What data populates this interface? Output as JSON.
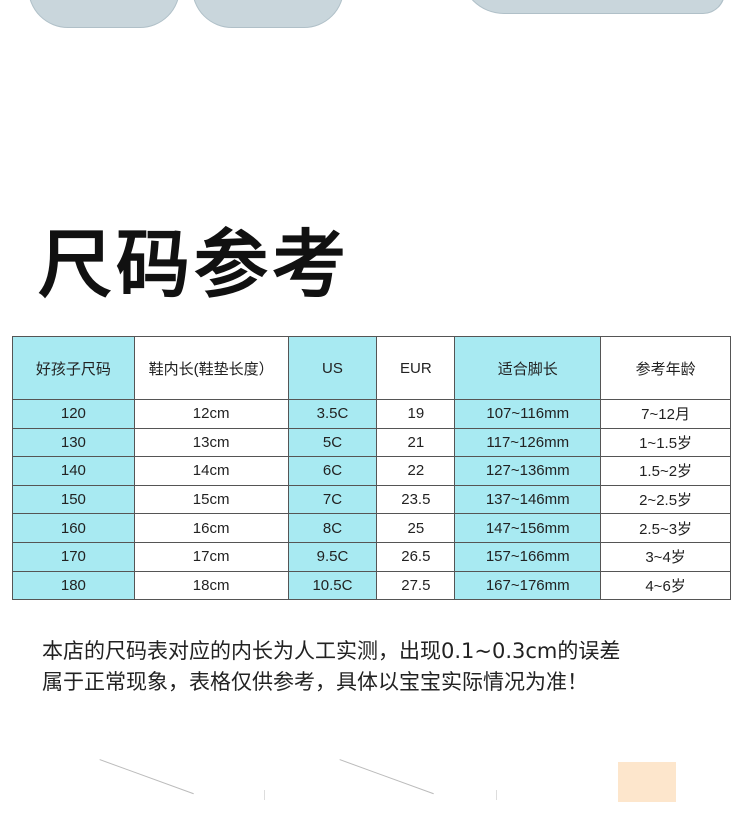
{
  "title": "尺码参考",
  "table": {
    "headers": [
      "好孩子尺码",
      "鞋内长(鞋垫长度）",
      "US",
      "EUR",
      "适合脚长",
      "参考年龄"
    ],
    "rows": [
      [
        "120",
        "12cm",
        "3.5C",
        "19",
        "107~116mm",
        "7~12月"
      ],
      [
        "130",
        "13cm",
        "5C",
        "21",
        "117~126mm",
        "1~1.5岁"
      ],
      [
        "140",
        "14cm",
        "6C",
        "22",
        "127~136mm",
        "1.5~2岁"
      ],
      [
        "150",
        "15cm",
        "7C",
        "23.5",
        "137~146mm",
        "2~2.5岁"
      ],
      [
        "160",
        "16cm",
        "8C",
        "25",
        "147~156mm",
        "2.5~3岁"
      ],
      [
        "170",
        "17cm",
        "9.5C",
        "26.5",
        "157~166mm",
        "3~4岁"
      ],
      [
        "180",
        "18cm",
        "10.5C",
        "27.5",
        "167~176mm",
        "4~6岁"
      ]
    ]
  },
  "note": [
    "本店的尺码表对应的内长为人工实测，出现0.1~0.3cm的误差",
    "属于正常现象，表格仅供参考，具体以宝宝实际情况为准！"
  ],
  "colors": {
    "highlight_column": "#a8eaf2"
  }
}
